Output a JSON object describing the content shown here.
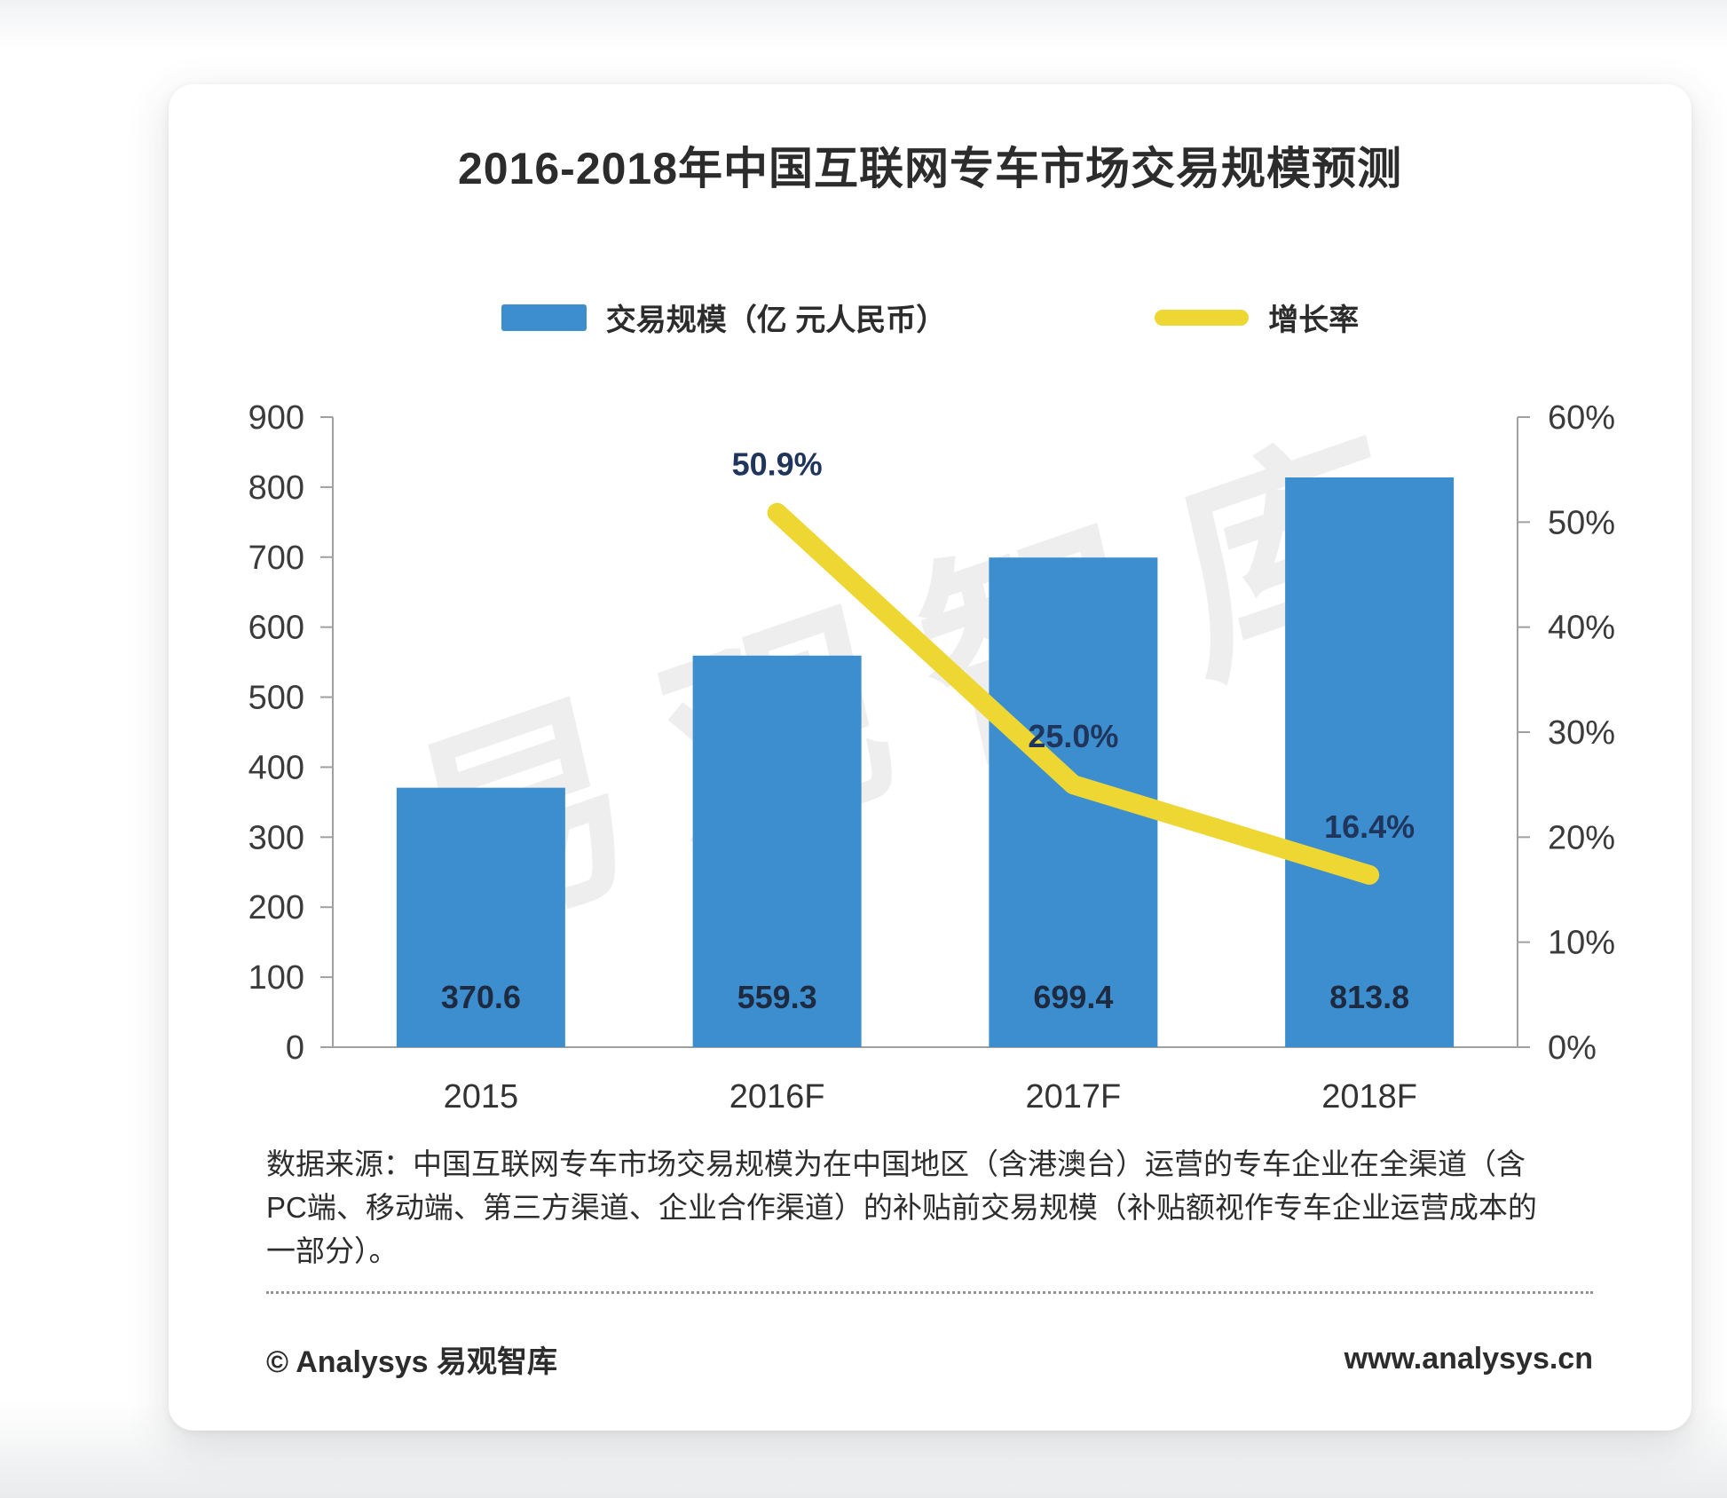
{
  "title": "2016-2018年中国互联网专车市场交易规模预测",
  "colors": {
    "bar": "#3D8ECE",
    "line": "#EED733",
    "axis": "#a0a0a0",
    "tick_label": "#3b3b3b",
    "bar_value_label": "#1e2a40",
    "line_value_label": "#20355c"
  },
  "legend": {
    "bar_label": "交易规模（亿 元人民币）",
    "line_label": "增长率"
  },
  "watermark": "易观智库",
  "chart_data": {
    "type": "bar+line combo",
    "title": "2016-2018年中国互联网专车市场交易规模预测",
    "categories": [
      "2015",
      "2016F",
      "2017F",
      "2018F"
    ],
    "series": [
      {
        "name": "交易规模（亿 元人民币）",
        "type": "bar",
        "axis": "left",
        "color": "#3D8ECE",
        "values": [
          370.6,
          559.3,
          699.4,
          813.8
        ],
        "labels": [
          "370.6",
          "559.3",
          "699.4",
          "813.8"
        ]
      },
      {
        "name": "增长率",
        "type": "line",
        "axis": "right",
        "color": "#EED733",
        "values": [
          null,
          50.9,
          25.0,
          16.4
        ],
        "labels": [
          null,
          "50.9%",
          "25.0%",
          "16.4%"
        ]
      }
    ],
    "left_axis": {
      "min": 0,
      "max": 900,
      "step": 100,
      "ticks": [
        {
          "v": 0,
          "label": "0"
        },
        {
          "v": 100,
          "label": "100"
        },
        {
          "v": 200,
          "label": "200"
        },
        {
          "v": 300,
          "label": "300"
        },
        {
          "v": 400,
          "label": "400"
        },
        {
          "v": 500,
          "label": "500"
        },
        {
          "v": 600,
          "label": "600"
        },
        {
          "v": 700,
          "label": "700"
        },
        {
          "v": 800,
          "label": "800"
        },
        {
          "v": 900,
          "label": "900"
        }
      ]
    },
    "right_axis": {
      "min": 0,
      "max": 60,
      "step": 10,
      "ticks": [
        {
          "v": 0,
          "label": "0%"
        },
        {
          "v": 10,
          "label": "10%"
        },
        {
          "v": 20,
          "label": "20%"
        },
        {
          "v": 30,
          "label": "30%"
        },
        {
          "v": 40,
          "label": "40%"
        },
        {
          "v": 50,
          "label": "50%"
        },
        {
          "v": 60,
          "label": "60%"
        }
      ]
    },
    "grid": "off",
    "legend_position": "top-center"
  },
  "footnote": {
    "lines": [
      "数据来源：中国互联网专车市场交易规模为在中国地区（含港澳台）运营的专车企业在全渠道（含",
      "PC端、移动端、第三方渠道、企业合作渠道）的补贴前交易规模（补贴额视作专车企业运营成本的",
      "一部分）。"
    ]
  },
  "footer": {
    "left": "© Analysys 易观智库",
    "right": "www.analysys.cn"
  }
}
